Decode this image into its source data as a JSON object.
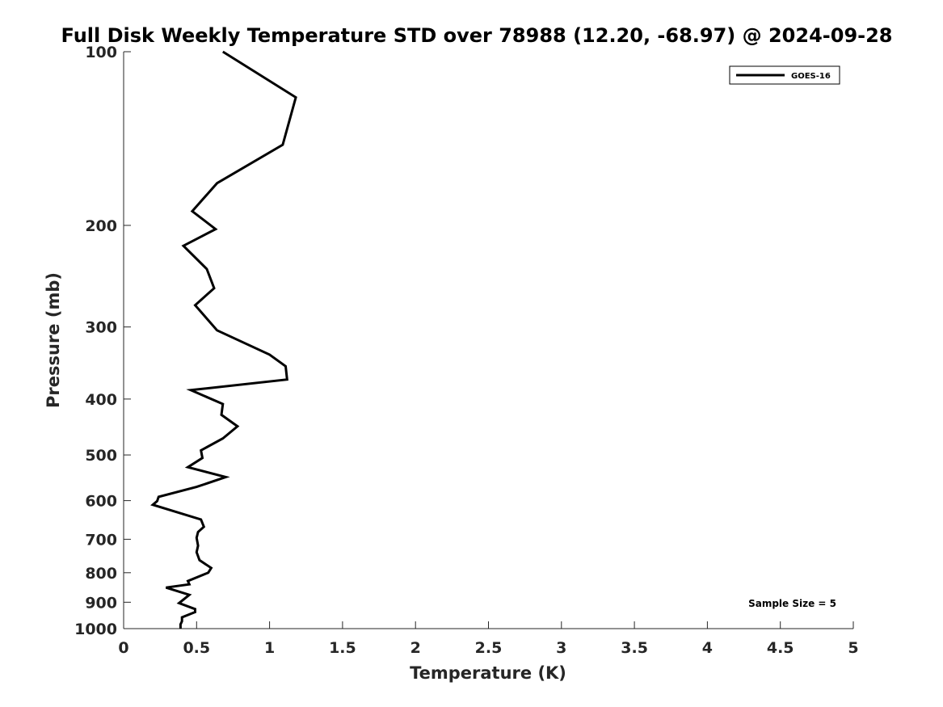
{
  "chart_data": {
    "type": "line",
    "title": "Full Disk Weekly Temperature STD over 78988 (12.20, -68.97) @ 2024-09-28",
    "xlabel": "Temperature (K)",
    "ylabel": "Pressure (mb)",
    "xlim": [
      0,
      5
    ],
    "ylim": [
      100,
      1000
    ],
    "y_scale": "log",
    "y_reversed": true,
    "x_ticks": [
      "0",
      "0.5",
      "1",
      "1.5",
      "2",
      "2.5",
      "3",
      "3.5",
      "4",
      "4.5",
      "5"
    ],
    "x_tick_values": [
      0,
      0.5,
      1,
      1.5,
      2,
      2.5,
      3,
      3.5,
      4,
      4.5,
      5
    ],
    "y_ticks": [
      "100",
      "200",
      "300",
      "400",
      "500",
      "600",
      "700",
      "800",
      "900",
      "1000"
    ],
    "y_tick_values": [
      100,
      200,
      300,
      400,
      500,
      600,
      700,
      800,
      900,
      1000
    ],
    "grid": false,
    "legend": {
      "position": "top-right",
      "entries": [
        "GOES-16"
      ]
    },
    "annotations": [
      {
        "text": "Sample Size = 5",
        "position": "bottom-right"
      }
    ],
    "series": [
      {
        "name": "GOES-16",
        "color": "#000000",
        "points": [
          [
            0.68,
            100
          ],
          [
            1.18,
            120
          ],
          [
            1.09,
            145
          ],
          [
            0.64,
            169
          ],
          [
            0.47,
            189
          ],
          [
            0.63,
            203
          ],
          [
            0.41,
            217
          ],
          [
            0.57,
            238
          ],
          [
            0.62,
            257
          ],
          [
            0.49,
            275
          ],
          [
            0.64,
            304
          ],
          [
            1.0,
            335
          ],
          [
            1.11,
            351
          ],
          [
            1.12,
            370
          ],
          [
            0.46,
            386
          ],
          [
            0.68,
            408
          ],
          [
            0.67,
            426
          ],
          [
            0.78,
            446
          ],
          [
            0.68,
            468
          ],
          [
            0.53,
            491
          ],
          [
            0.54,
            506
          ],
          [
            0.44,
            525
          ],
          [
            0.7,
            546
          ],
          [
            0.5,
            568
          ],
          [
            0.24,
            591
          ],
          [
            0.23,
            601
          ],
          [
            0.2,
            610
          ],
          [
            0.53,
            647
          ],
          [
            0.55,
            666
          ],
          [
            0.51,
            680
          ],
          [
            0.5,
            696
          ],
          [
            0.51,
            718
          ],
          [
            0.5,
            737
          ],
          [
            0.52,
            761
          ],
          [
            0.6,
            785
          ],
          [
            0.58,
            800
          ],
          [
            0.44,
            827
          ],
          [
            0.45,
            838
          ],
          [
            0.29,
            849
          ],
          [
            0.45,
            874
          ],
          [
            0.38,
            903
          ],
          [
            0.49,
            925
          ],
          [
            0.49,
            936
          ],
          [
            0.4,
            956
          ],
          [
            0.4,
            971
          ],
          [
            0.39,
            983
          ],
          [
            0.39,
            1000
          ]
        ]
      }
    ]
  }
}
